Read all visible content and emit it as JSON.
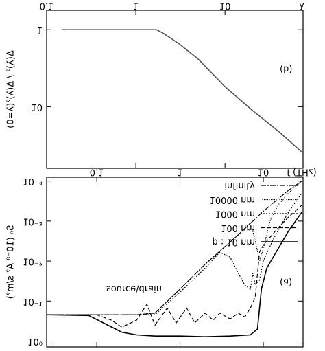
{
  "chart_data": [
    {
      "type": "line",
      "x_label": "f (THz)",
      "y_label": "Sₙ (10⁻⁸ A² s/m²)",
      "annotations": [
        "(a)",
        "source\\drain"
      ],
      "log_x": true,
      "log_y": true,
      "flipped_vertically": true,
      "xlim": [
        0.025,
        30
      ],
      "xticks": [
        0.1,
        1,
        10
      ],
      "ylim": [
        8e-05,
        1.4
      ],
      "yticks": [
        {
          "value": 1,
          "label": "10⁰"
        },
        {
          "value": 0.1,
          "label": "10⁻¹"
        },
        {
          "value": 0.01,
          "label": "10⁻²"
        },
        {
          "value": 0.001,
          "label": "10⁻³"
        },
        {
          "value": 0.0001,
          "label": "10⁻⁴"
        }
      ],
      "series": [
        {
          "name": "p : 10 nm",
          "color": "#000",
          "style": "solid",
          "x": [
            0.025,
            0.08,
            0.12,
            0.2,
            0.3,
            0.5,
            1,
            2,
            4,
            7,
            8.5,
            9.5,
            11,
            15,
            20,
            29
          ],
          "values": [
            0.22,
            0.23,
            0.35,
            0.6,
            0.7,
            0.75,
            0.75,
            0.78,
            0.75,
            0.7,
            0.5,
            0.05,
            0.015,
            0.005,
            0.0018,
            0.0006
          ]
        },
        {
          "name": "100 nm",
          "color": "#000",
          "style": "dashed",
          "x": [
            0.025,
            0.1,
            0.15,
            0.2,
            0.3,
            0.4,
            0.5,
            0.7,
            0.9,
            1.2,
            1.5,
            2,
            2.5,
            3,
            4,
            5,
            6,
            7,
            8,
            9,
            10,
            15,
            20,
            29
          ],
          "values": [
            0.22,
            0.22,
            0.3,
            0.45,
            0.3,
            0.12,
            0.4,
            0.15,
            0.35,
            0.15,
            0.35,
            0.2,
            0.3,
            0.2,
            0.28,
            0.2,
            0.25,
            0.15,
            0.08,
            0.006,
            0.004,
            0.0015,
            0.0008,
            0.0004
          ]
        },
        {
          "name": "1000 nm",
          "color": "#000",
          "style": "dotted",
          "x": [
            0.025,
            0.5,
            1,
            2,
            3,
            4,
            5,
            6,
            7,
            7.5,
            8,
            9,
            10,
            13,
            20,
            29
          ],
          "values": [
            0.22,
            0.22,
            0.06,
            0.015,
            0.006,
            0.008,
            0.02,
            0.04,
            0.05,
            0.02,
            0.04,
            0.03,
            0.01,
            0.003,
            0.0006,
            0.0002
          ]
        },
        {
          "name": "10000 nm",
          "color": "#000",
          "style": "fine",
          "x": [
            0.025,
            0.3,
            0.5,
            1,
            2,
            5,
            7,
            8,
            9,
            10,
            12,
            15,
            20,
            29
          ],
          "values": [
            0.22,
            0.22,
            0.2,
            0.05,
            0.012,
            0.0022,
            0.0011,
            0.003,
            0.01,
            0.005,
            0.001,
            0.0004,
            0.0002,
            0.0001
          ]
        },
        {
          "name": "infinity",
          "color": "#000",
          "style": "dashdot",
          "x": [
            0.025,
            0.1,
            0.3,
            0.5,
            1,
            2,
            5,
            10,
            20,
            29
          ],
          "values": [
            0.22,
            0.22,
            0.22,
            0.2,
            0.05,
            0.012,
            0.0022,
            0.00057,
            0.00017,
            0.0001
          ]
        }
      ]
    },
    {
      "type": "line",
      "x_label": "λ",
      "y_label": "Δ(λ)² / Δ(λ)²(λ=0)",
      "annotations": [
        "(b)"
      ],
      "log_x": true,
      "log_y": true,
      "flipped_vertically": true,
      "xlim": [
        0.1,
        75
      ],
      "xticks": [
        0.1,
        1,
        10
      ],
      "ylim": [
        0.56,
        63
      ],
      "yticks": [
        1,
        10
      ],
      "series": [
        {
          "color": "#555",
          "style": "solid",
          "x": [
            0.15,
            0.5,
            1,
            1.7,
            2,
            3,
            5,
            10,
            20,
            40,
            75
          ],
          "values": [
            1,
            1,
            1,
            1,
            1.1,
            1.5,
            2.4,
            5.5,
            11,
            21,
            40
          ]
        }
      ]
    }
  ]
}
